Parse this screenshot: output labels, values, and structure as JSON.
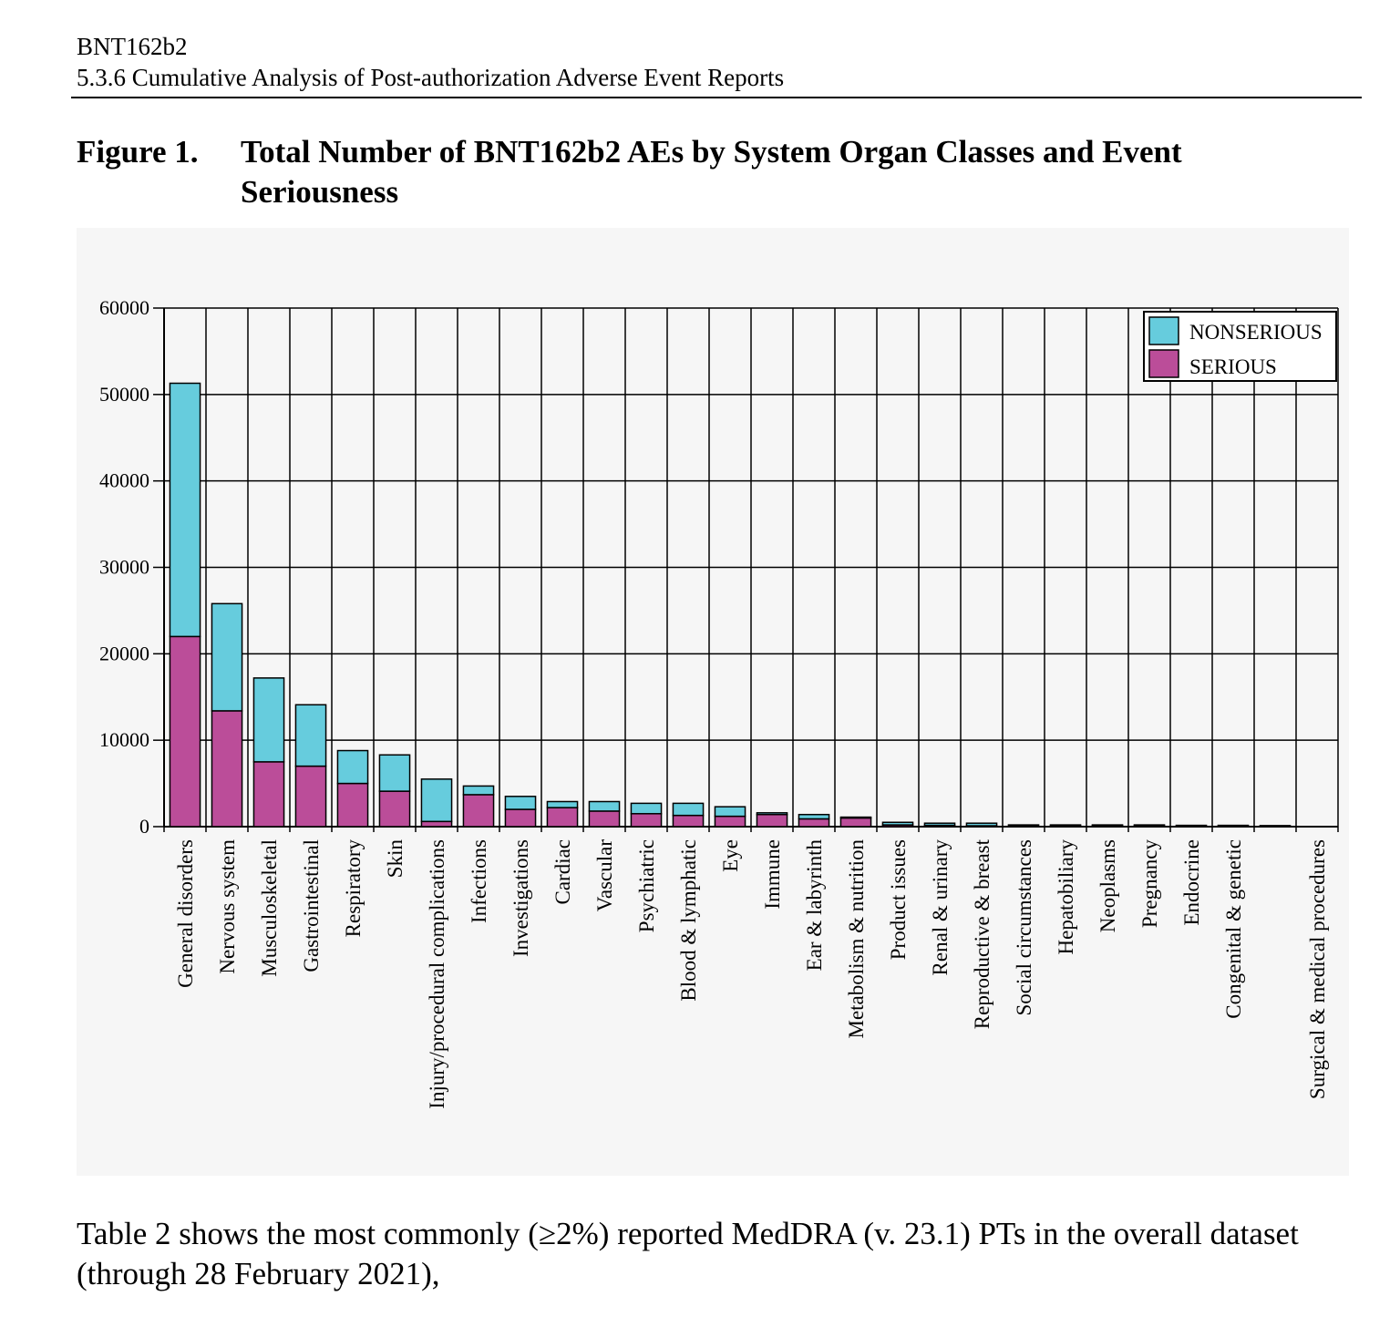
{
  "header": {
    "line1": "BNT162b2",
    "line2": "5.3.6 Cumulative Analysis of Post-authorization Adverse Event Reports"
  },
  "figure": {
    "number": "Figure 1.",
    "title": "Total Number of BNT162b2 AEs by System Organ Classes and Event Seriousness"
  },
  "body_text": "Table 2 shows the most commonly (≥2%) reported MedDRA (v. 23.1) PTs in the overall dataset (through 28 February 2021),",
  "colors": {
    "nonserious": "#66ccdd",
    "serious": "#bb4d99",
    "grid": "#000000",
    "chart_background": "#f6f6f6"
  },
  "chart_data": {
    "type": "bar",
    "stacked": true,
    "title": "",
    "xlabel": "",
    "ylabel": "",
    "ylim": [
      0,
      60000
    ],
    "yticks": [
      0,
      10000,
      20000,
      30000,
      40000,
      50000,
      60000
    ],
    "grid": true,
    "legend_position": "top-right",
    "categories": [
      "General disorders",
      "Nervous system",
      "Musculoskeletal",
      "Gastrointestinal",
      "Respiratory",
      "Skin",
      "Injury/procedural complications",
      "Infections",
      "Investigations",
      "Cardiac",
      "Vascular",
      "Psychiatric",
      "Blood & lymphatic",
      "Eye",
      "Immune",
      "Ear & labyrinth",
      "Metabolism & nutrition",
      "Product issues",
      "Renal & urinary",
      "Reproductive & breast",
      "Social circumstances",
      "Hepatobiliary",
      "Neoplasms",
      "Pregnancy",
      "Endocrine",
      "Congenital & genetic",
      "",
      "Surgical & medical procedures"
    ],
    "series": [
      {
        "name": "SERIOUS",
        "values": [
          22000,
          13400,
          7500,
          7000,
          5000,
          4100,
          600,
          3700,
          2000,
          2200,
          1800,
          1500,
          1300,
          1200,
          1400,
          900,
          1000,
          200,
          150,
          100,
          50,
          100,
          150,
          100,
          50,
          50,
          20,
          0
        ]
      },
      {
        "name": "NONSERIOUS",
        "values": [
          29300,
          12400,
          9700,
          7100,
          3800,
          4200,
          4900,
          1000,
          1500,
          700,
          1100,
          1200,
          1400,
          1100,
          200,
          500,
          100,
          300,
          250,
          300,
          150,
          100,
          50,
          100,
          100,
          100,
          100,
          0
        ]
      }
    ]
  }
}
